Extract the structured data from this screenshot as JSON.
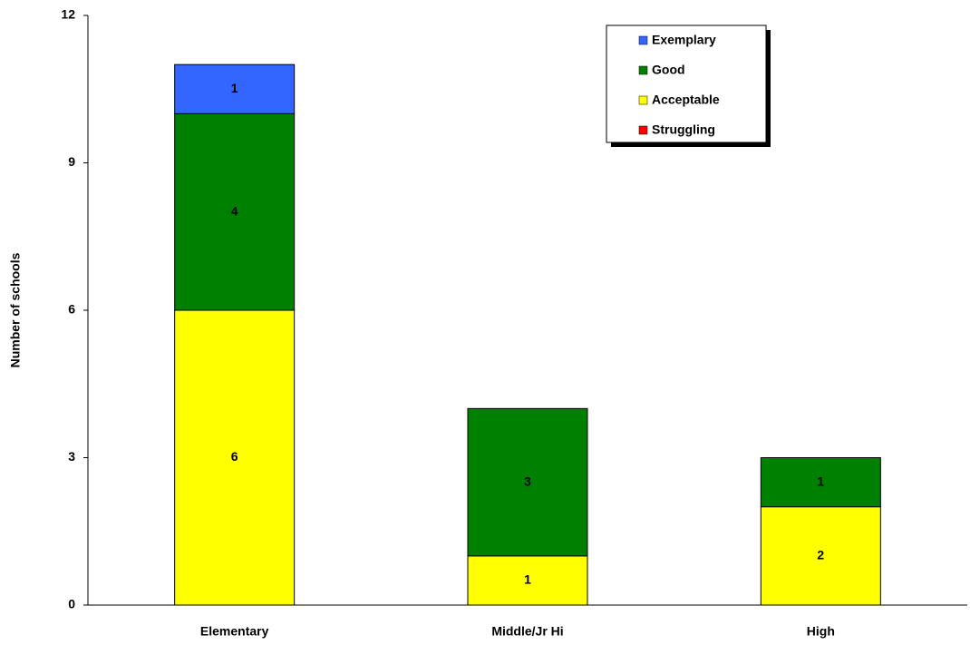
{
  "chart_data": {
    "type": "stacked_bar",
    "y_label": "Number of schools",
    "categories": [
      "Elementary",
      "Middle/Jr Hi",
      "High"
    ],
    "series": [
      {
        "name": "Struggling",
        "color": "#ff0000",
        "values": [
          0,
          0,
          0
        ]
      },
      {
        "name": "Acceptable",
        "color": "#ffff00",
        "values": [
          6,
          1,
          2
        ]
      },
      {
        "name": "Good",
        "color": "#008000",
        "values": [
          4,
          3,
          1
        ]
      },
      {
        "name": "Exemplary",
        "color": "#3366ff",
        "values": [
          1,
          0,
          0
        ]
      }
    ],
    "ylim": [
      0,
      12
    ],
    "yticks": [
      0,
      3,
      6,
      9,
      12
    ],
    "grid": false,
    "legend": "top-right"
  }
}
